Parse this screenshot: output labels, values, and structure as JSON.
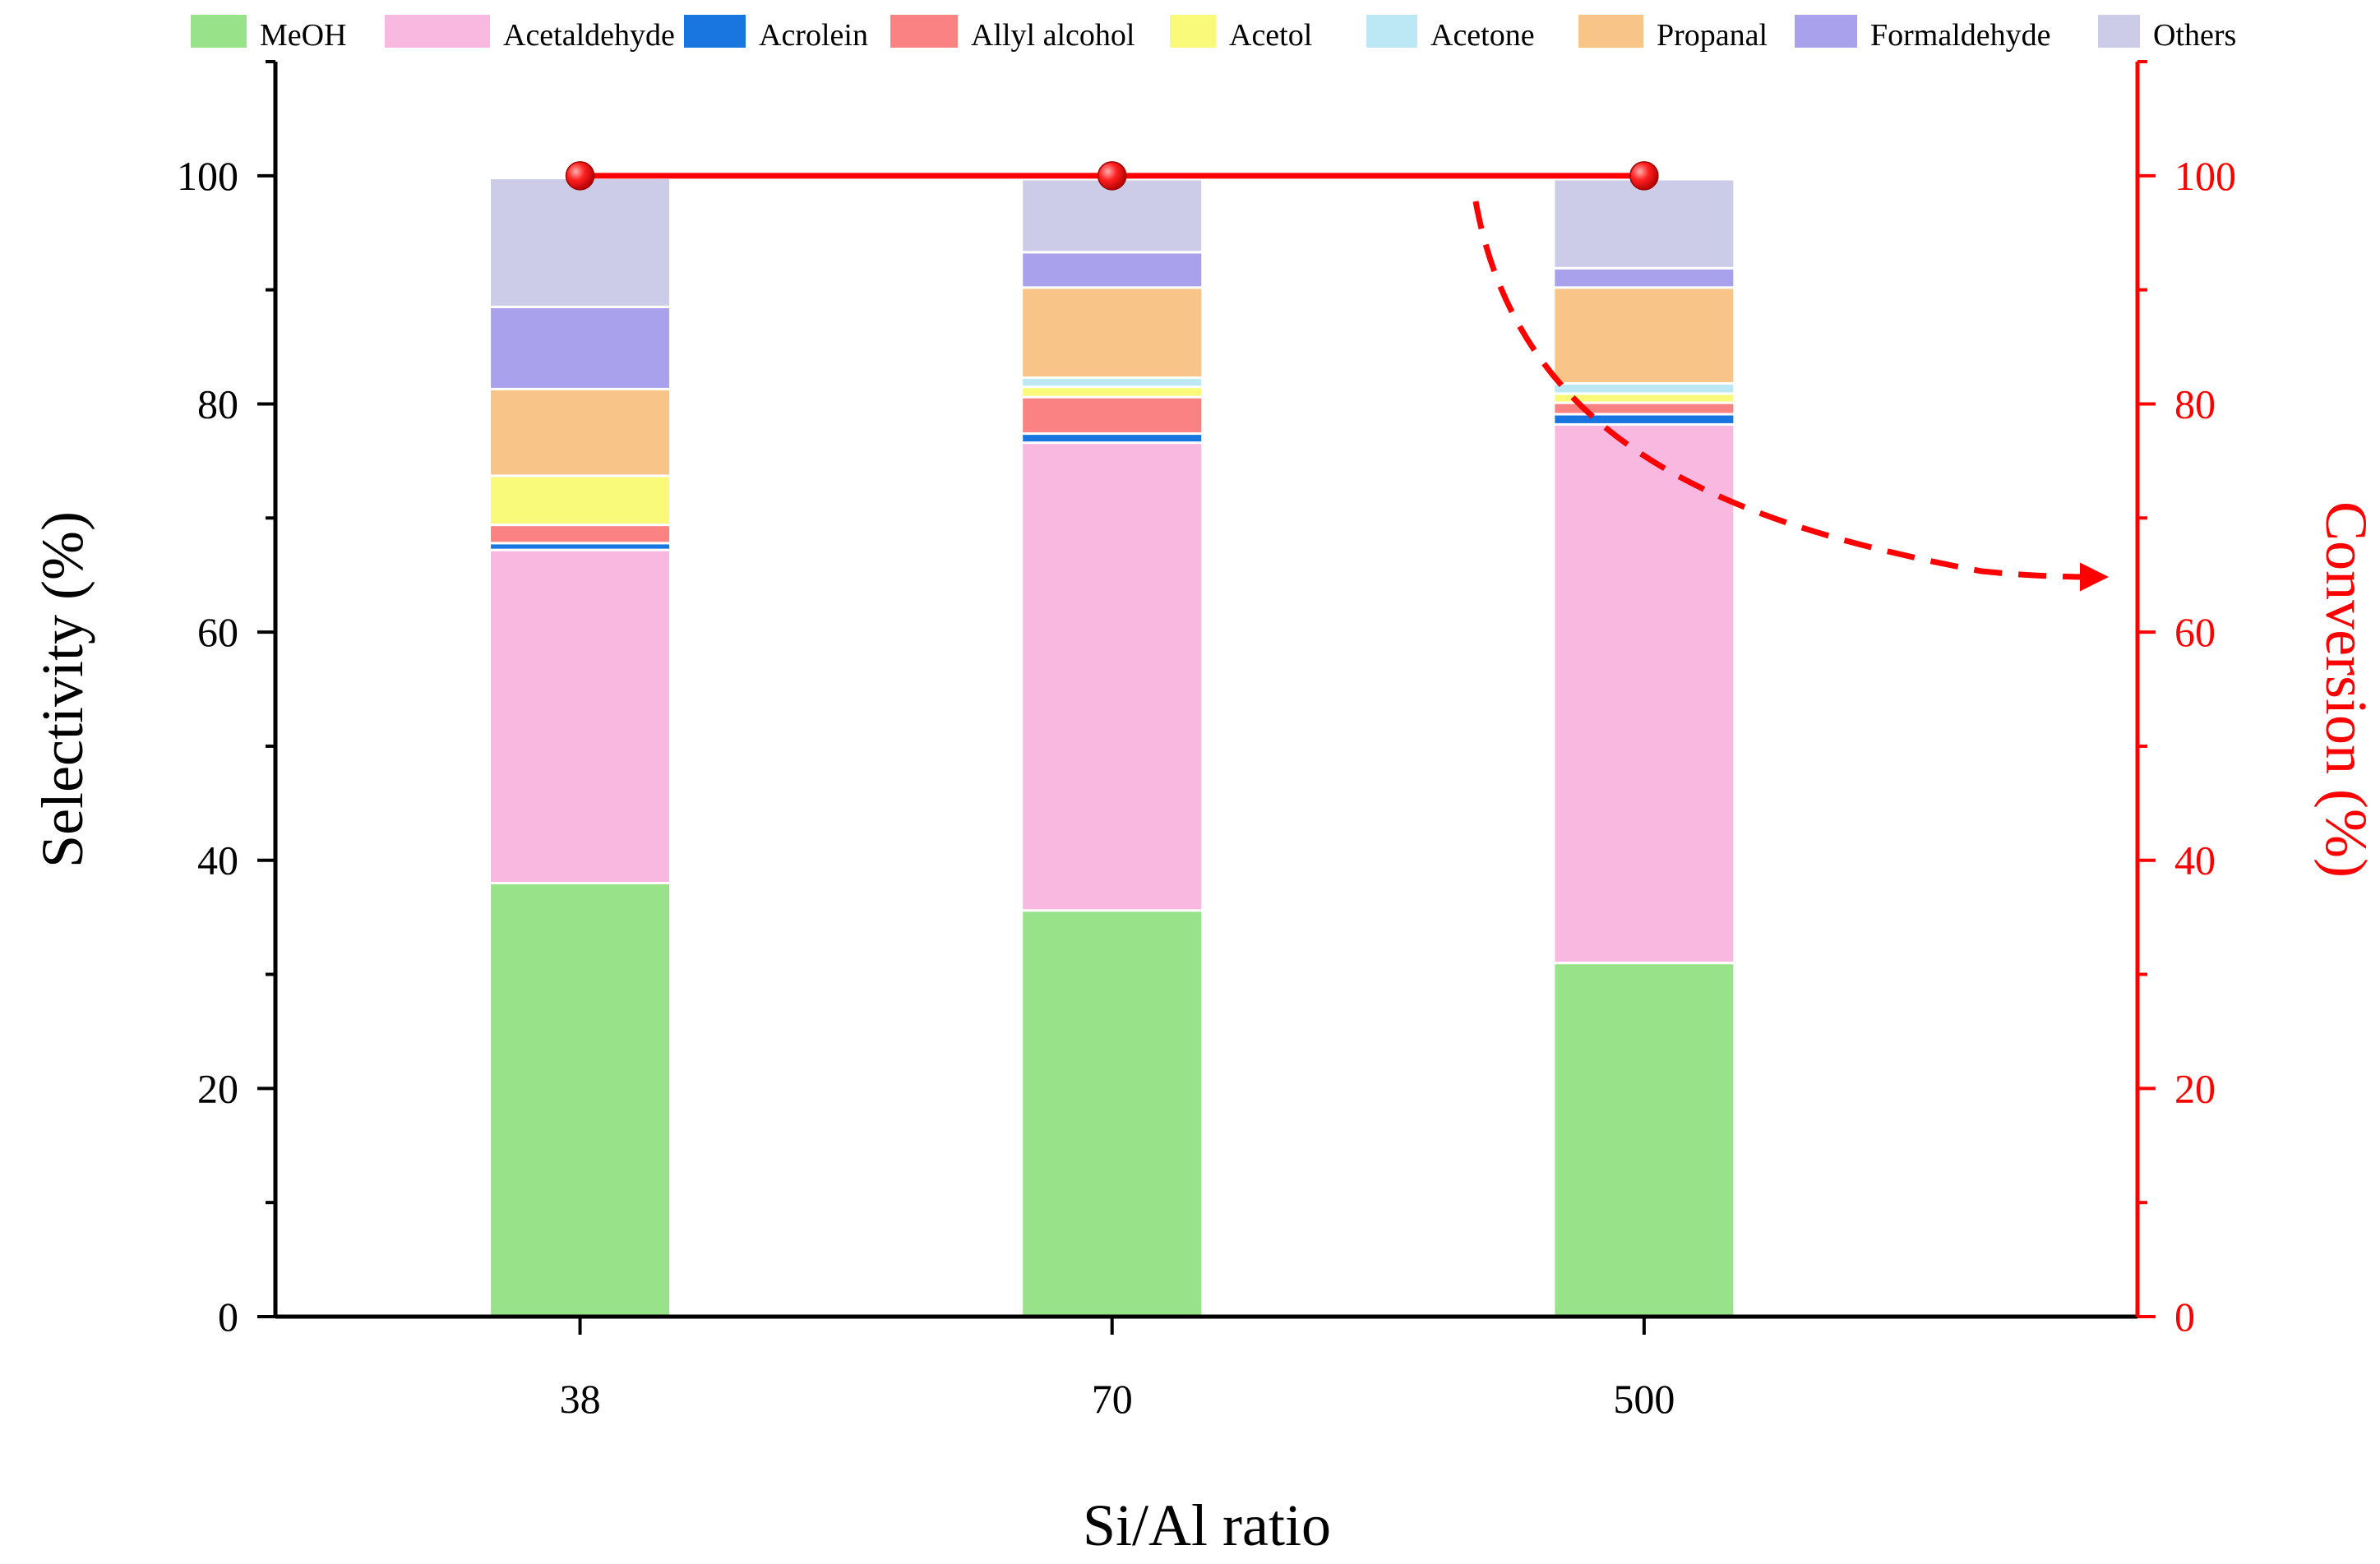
{
  "chart_data": {
    "type": "bar",
    "stacked": true,
    "xlabel": "Si/Al ratio",
    "ylabel": "Selectivity (%)",
    "ylabel_right": "Conversion (%)",
    "ylim": [
      0,
      110
    ],
    "ylim_right": [
      0,
      110
    ],
    "yticks": [
      0,
      20,
      40,
      60,
      80,
      100
    ],
    "categories": [
      "38",
      "70",
      "500"
    ],
    "series": [
      {
        "name": "MeOH",
        "color": "#98E38A",
        "values": [
          38.0,
          35.6,
          31.0
        ]
      },
      {
        "name": "Acetaldehyde",
        "color": "#F8B8E0",
        "values": [
          29.2,
          41.0,
          47.2
        ]
      },
      {
        "name": "Acrolein",
        "color": "#1976E0",
        "values": [
          0.6,
          0.8,
          0.9
        ]
      },
      {
        "name": "Allyl alcohol",
        "color": "#FA8282",
        "values": [
          1.6,
          3.2,
          1.0
        ]
      },
      {
        "name": "Acetol",
        "color": "#FAFA7A",
        "values": [
          4.3,
          0.9,
          0.8
        ]
      },
      {
        "name": "Acetone",
        "color": "#BCE8F5",
        "values": [
          0.0,
          0.8,
          0.9
        ]
      },
      {
        "name": "Propanal",
        "color": "#F8C487",
        "values": [
          7.6,
          7.9,
          8.4
        ]
      },
      {
        "name": "Formaldehyde",
        "color": "#A9A1EC",
        "values": [
          7.2,
          3.1,
          1.7
        ]
      },
      {
        "name": "Others",
        "color": "#CCCCE8",
        "values": [
          11.3,
          6.4,
          7.8
        ]
      }
    ],
    "conversion": {
      "name": "Conversion",
      "color": "#ff0000",
      "values": [
        100,
        100,
        100
      ]
    },
    "annotation": "dashed arrow pointing to right axis"
  }
}
